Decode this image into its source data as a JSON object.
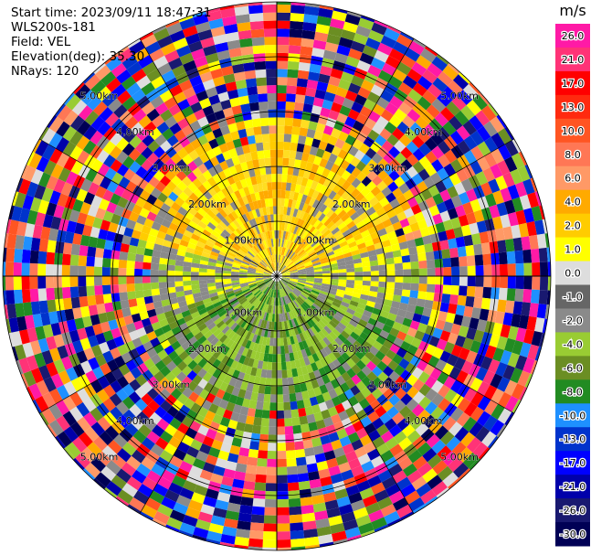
{
  "header": {
    "start_time": "Start time: 2023/09/11 18:47:31",
    "instrument": "WLS200s-181",
    "field": "Field: VEL",
    "elevation": "Elevation(deg): 35.30",
    "nrays": "NRays: 120"
  },
  "colorbar": {
    "unit": "m/s",
    "ticks": [
      "26.0",
      "21.0",
      "17.0",
      "13.0",
      "10.0",
      "8.0",
      "6.0",
      "4.0",
      "2.0",
      "1.0",
      "0.0",
      "-1.0",
      "-2.0",
      "-4.0",
      "-6.0",
      "-8.0",
      "-10.0",
      "-13.0",
      "-17.0",
      "-21.0",
      "-26.0",
      "-30.0"
    ],
    "colors": [
      "#ff1aa6",
      "#ff3377",
      "#ff0000",
      "#ff2a0f",
      "#ff5522",
      "#ff7755",
      "#ff9966",
      "#ffaa00",
      "#ffcc00",
      "#ffff00",
      "#dddddd",
      "#666666",
      "#8a8a8a",
      "#99cc33",
      "#6b8e23",
      "#228b22",
      "#1e90ff",
      "#0033cc",
      "#0000ff",
      "#0000aa",
      "#191970",
      "#000055"
    ]
  },
  "range_labels": [
    "1.00km",
    "2.00km",
    "3.00km",
    "4.00km",
    "5.00km"
  ],
  "range_rings": [
    1,
    2,
    3,
    4,
    5
  ],
  "ppi": {
    "nrays": 120
  }
}
